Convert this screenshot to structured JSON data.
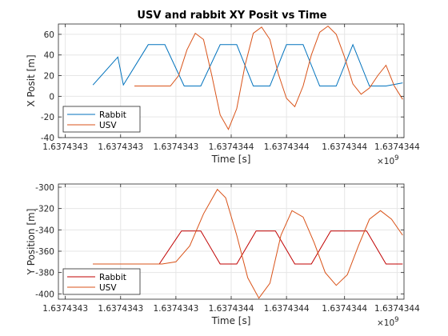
{
  "figure": {
    "title": "USV and rabbit XY Posit vs Time",
    "x_exponent_base": "×10",
    "x_exponent_power": "9"
  },
  "chart_data": [
    {
      "type": "line",
      "title": "USV and rabbit XY Posit vs Time",
      "xlabel": "Time [s]",
      "ylabel": "X Posit [m]",
      "xlim": [
        1.6374343375,
        1.6374344625
      ],
      "ylim": [
        -40,
        70
      ],
      "x_ticks": [
        1.63743434,
        1.63743436,
        1.63743438,
        1.6374344,
        1.63743442,
        1.637434441,
        1.63743446
      ],
      "x_tick_labels": [
        "1.6374343",
        "1.6374343",
        "1.6374343",
        "1.6374344",
        "1.6374344",
        "1.6374344",
        "1.6374344"
      ],
      "y_ticks": [
        -40,
        -20,
        0,
        20,
        40,
        60
      ],
      "y_tick_labels": [
        "-40",
        "-20",
        "0",
        "20",
        "40",
        "60"
      ],
      "grid": true,
      "legend_position": "bottom-left",
      "series": [
        {
          "name": "Rabbit",
          "color": "#0072BD",
          "x": [
            1.63743435,
            1.637434359,
            1.637434361,
            1.63743437,
            1.637434376,
            1.637434383,
            1.637434389,
            1.637434396,
            1.637434402,
            1.637434408,
            1.637434414,
            1.63743442,
            1.637434426,
            1.637434432,
            1.637434438,
            1.637434444,
            1.63743445,
            1.637434456,
            1.637434462
          ],
          "y": [
            11,
            38,
            11,
            50,
            50,
            10,
            10,
            50,
            50,
            10,
            10,
            50,
            50,
            10,
            10,
            50,
            10,
            10,
            13
          ]
        },
        {
          "name": "USV",
          "color": "#D95319",
          "x": [
            1.637434365,
            1.63743437,
            1.637434378,
            1.637434381,
            1.637434384,
            1.637434387,
            1.63743439,
            1.637434393,
            1.637434396,
            1.637434399,
            1.637434402,
            1.637434405,
            1.637434408,
            1.637434411,
            1.637434414,
            1.637434417,
            1.63743442,
            1.637434423,
            1.637434426,
            1.637434429,
            1.637434432,
            1.637434435,
            1.637434438,
            1.637434441,
            1.637434444,
            1.637434447,
            1.63743445,
            1.637434453,
            1.637434456,
            1.637434459,
            1.637434462
          ],
          "y": [
            10,
            10,
            10,
            20,
            45,
            61,
            55,
            20,
            -18,
            -32,
            -12,
            30,
            61,
            67,
            55,
            22,
            -2,
            -10,
            10,
            40,
            62,
            68,
            60,
            38,
            12,
            2,
            8,
            20,
            30,
            10,
            -3
          ]
        }
      ]
    },
    {
      "type": "line",
      "xlabel": "Time [s]",
      "ylabel": "Y Position [m]",
      "xlim": [
        1.6374343375,
        1.6374344625
      ],
      "ylim": [
        -405,
        -297
      ],
      "x_ticks": [
        1.63743434,
        1.63743436,
        1.63743438,
        1.6374344,
        1.63743442,
        1.637434441,
        1.63743446
      ],
      "x_tick_labels": [
        "1.6374343",
        "1.6374343",
        "1.6374343",
        "1.6374344",
        "1.6374344",
        "1.6374344",
        "1.6374344"
      ],
      "y_ticks": [
        -400,
        -380,
        -360,
        -340,
        -320,
        -300
      ],
      "y_tick_labels": [
        "-400",
        "-380",
        "-360",
        "-340",
        "-320",
        "-300"
      ],
      "grid": true,
      "legend_position": "bottom-left",
      "series": [
        {
          "name": "Rabbit",
          "color": "#C00000",
          "x": [
            1.63743435,
            1.637434362,
            1.637434374,
            1.637434382,
            1.637434389,
            1.637434396,
            1.637434402,
            1.637434409,
            1.637434416,
            1.637434423,
            1.637434429,
            1.637434436,
            1.637434442,
            1.637434449,
            1.637434456,
            1.637434462
          ],
          "y": [
            -372,
            -372,
            -372,
            -341,
            -341,
            -372,
            -372,
            -341,
            -341,
            -372,
            -372,
            -341,
            -341,
            -341,
            -372,
            -372
          ]
        },
        {
          "name": "USV",
          "color": "#D95319",
          "x": [
            1.63743435,
            1.637434365,
            1.637434375,
            1.63743438,
            1.637434385,
            1.63743439,
            1.637434395,
            1.637434398,
            1.637434402,
            1.637434406,
            1.63743441,
            1.637434414,
            1.637434418,
            1.637434422,
            1.637434426,
            1.63743443,
            1.637434434,
            1.637434438,
            1.637434442,
            1.637434446,
            1.63743445,
            1.637434454,
            1.637434458,
            1.637434462
          ],
          "y": [
            -372,
            -372,
            -372,
            -370,
            -355,
            -325,
            -302,
            -310,
            -345,
            -385,
            -404,
            -390,
            -345,
            -322,
            -328,
            -352,
            -380,
            -392,
            -382,
            -355,
            -330,
            -322,
            -330,
            -345
          ]
        }
      ]
    }
  ]
}
